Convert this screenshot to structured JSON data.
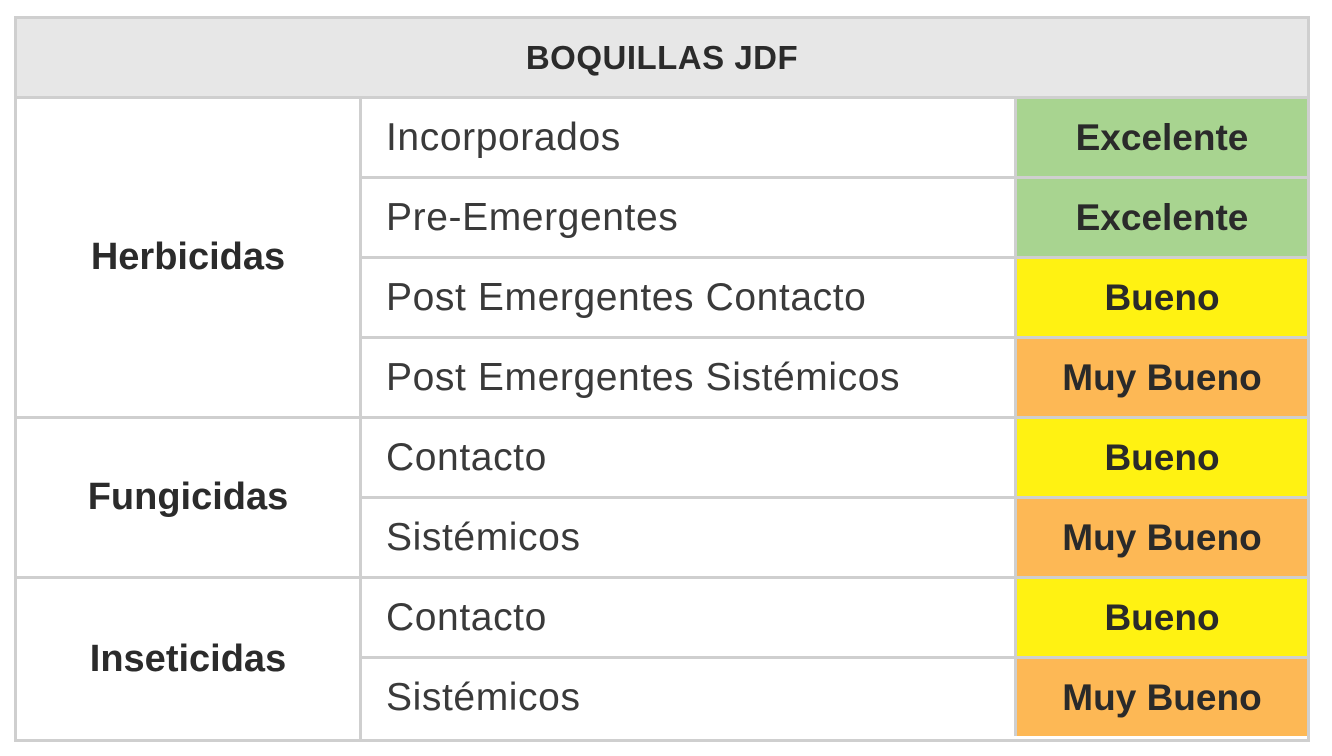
{
  "title": "BOQUILLAS JDF",
  "groups": [
    {
      "name": "Herbicidas",
      "rows": [
        {
          "label": "Incorporados",
          "rating": "Excelente"
        },
        {
          "label": "Pre-Emergentes",
          "rating": "Excelente"
        },
        {
          "label": "Post Emergentes Contacto",
          "rating": "Bueno"
        },
        {
          "label": "Post Emergentes Sistémicos",
          "rating": "Muy Bueno"
        }
      ]
    },
    {
      "name": "Fungicidas",
      "rows": [
        {
          "label": "Contacto",
          "rating": "Bueno"
        },
        {
          "label": "Sistémicos",
          "rating": "Muy Bueno"
        }
      ]
    },
    {
      "name": "Inseticidas",
      "rows": [
        {
          "label": "Contacto",
          "rating": "Bueno"
        },
        {
          "label": "Sistémicos",
          "rating": "Muy Bueno"
        }
      ]
    }
  ],
  "rating_colors": {
    "Excelente": "#a8d490",
    "Muy Bueno": "#fdb855",
    "Bueno": "#fff212"
  }
}
